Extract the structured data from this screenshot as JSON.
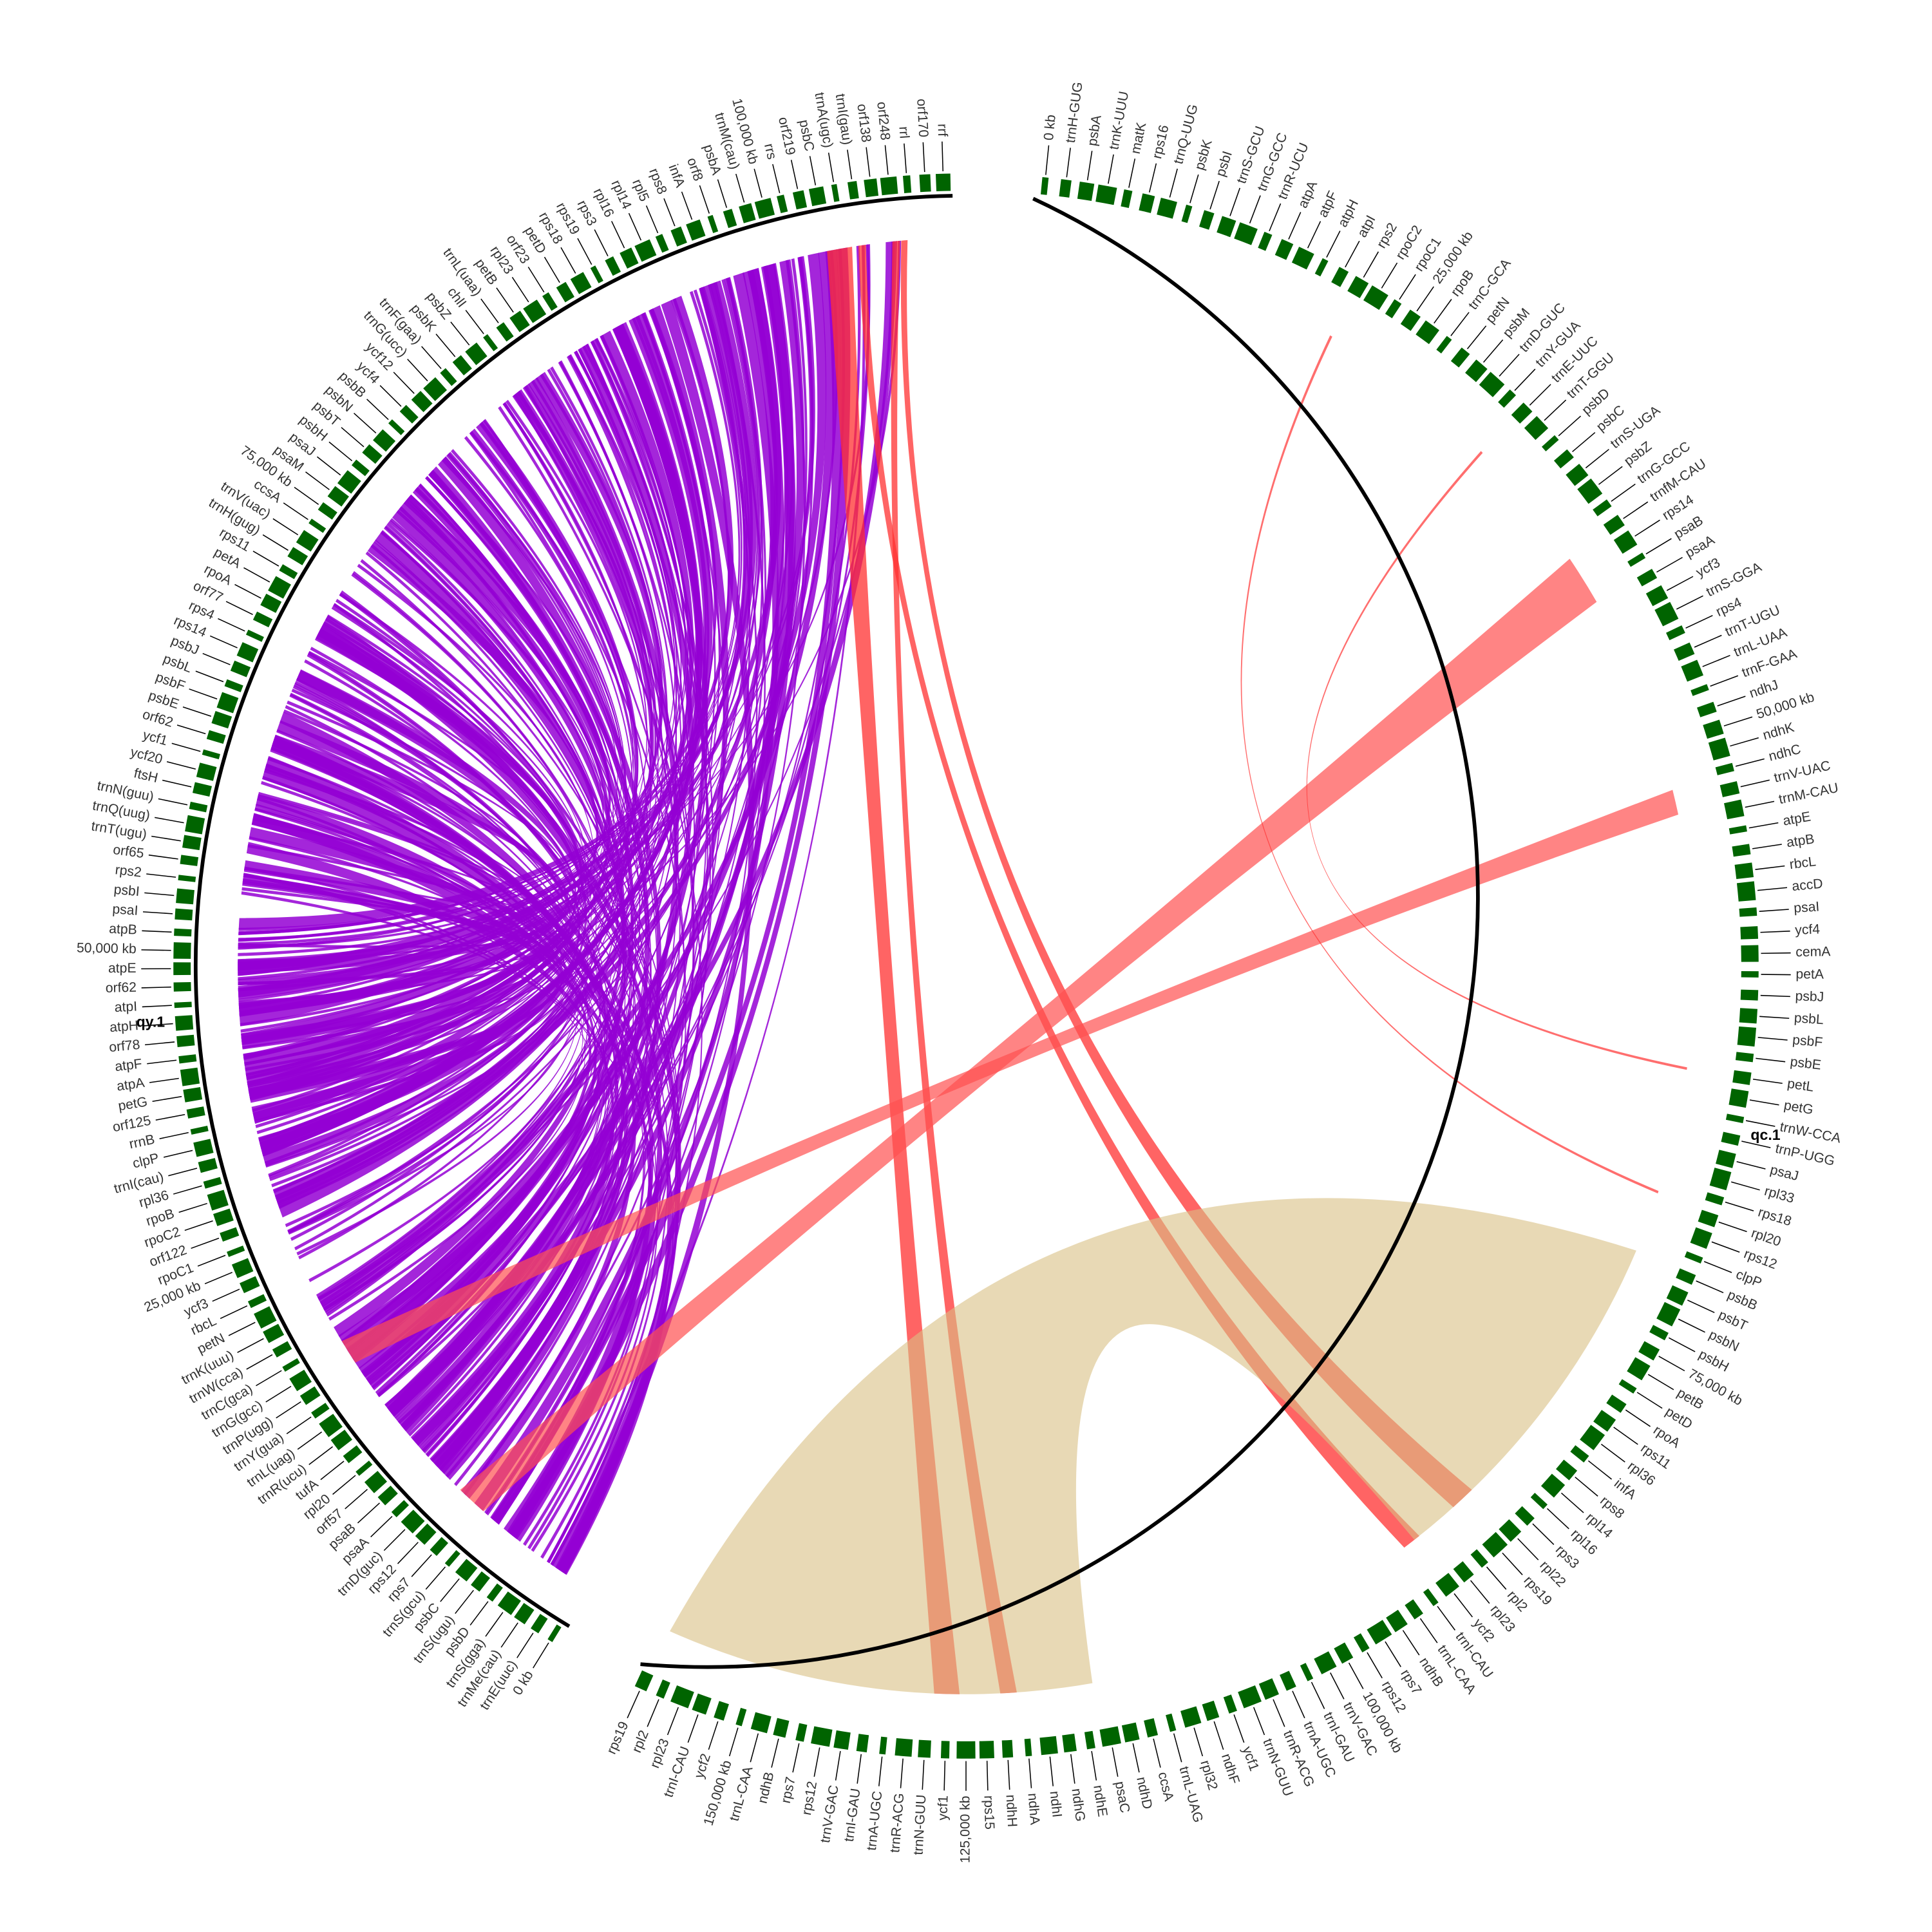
{
  "segments": [
    {
      "name": "qy.1",
      "labels": [
        "0 kb",
        "trnE(uuc)",
        "trnMe(cau)",
        "trnS(gga)",
        "psbD",
        "trnS(ugu)",
        "psbC",
        "trnS(gcu)",
        "rps7",
        "rps12",
        "trnD(guc)",
        "psaA",
        "psaB",
        "orf57",
        "rpl20",
        "tufA",
        "trnR(ucu)",
        "trnL(uag)",
        "trnY(gua)",
        "trnP(ugg)",
        "trnG(gcc)",
        "trnC(gca)",
        "trnW(cca)",
        "trnK(uuu)",
        "petN",
        "rbcL",
        "ycf3",
        "25,000 kb",
        "rpoC1",
        "orf122",
        "rpoC2",
        "rpoB",
        "rpl36",
        "trnI(cau)",
        "clpP",
        "rrnB",
        "orf125",
        "petG",
        "atpA",
        "atpF",
        "orf78",
        "atpH",
        "atpI",
        "orf62",
        "atpE",
        "50,000 kb",
        "atpB",
        "psaI",
        "psbI",
        "rps2",
        "orf65",
        "trnT(ugu)",
        "trnQ(uug)",
        "trnN(guu)",
        "ftsH",
        "ycf20",
        "ycf1",
        "orf62",
        "psbE",
        "psbF",
        "psbL",
        "psbJ",
        "rps14",
        "rps4",
        "orf77",
        "rpoA",
        "petA",
        "rps11",
        "trnH(gug)",
        "trnV(uac)",
        "ccsA",
        "75,000 kb",
        "psaM",
        "psaJ",
        "psbH",
        "psbT",
        "psbN",
        "psbB",
        "ycf4",
        "ycf12",
        "trnG(ucc)",
        "trnF(gaa)",
        "psbK",
        "psbZ",
        "chlI",
        "trnL(uaa)",
        "petB",
        "rpl23",
        "orf23",
        "petD",
        "rps18",
        "rps19",
        "rps3",
        "rpl16",
        "rpl14",
        "rpl5",
        "rps8",
        "infA",
        "orf8",
        "psbA",
        "trnM(cau)",
        "100,000 kb",
        "rrs",
        "orf219",
        "psbC",
        "trnA(ugc)",
        "trnI(gau)",
        "orf138",
        "orf248",
        "rrl",
        "orf170",
        "rrf"
      ]
    },
    {
      "name": "qc.1",
      "labels": [
        "0 kb",
        "trnH-GUG",
        "psbA",
        "trnK-UUU",
        "matK",
        "rps16",
        "trnQ-UUG",
        "psbK",
        "psbI",
        "trnS-GCU",
        "trnG-GCC",
        "trnR-UCU",
        "atpA",
        "atpF",
        "atpH",
        "atpI",
        "rps2",
        "rpoC2",
        "rpoC1",
        "25,000 kb",
        "rpoB",
        "trnC-GCA",
        "petN",
        "psbM",
        "trnD-GUC",
        "trnY-GUA",
        "trnE-UUC",
        "trnT-GGU",
        "psbD",
        "psbC",
        "trnS-UGA",
        "psbZ",
        "trnG-GCC",
        "trnfM-CAU",
        "rps14",
        "psaB",
        "psaA",
        "ycf3",
        "trnS-GGA",
        "rps4",
        "trnT-UGU",
        "trnL-UAA",
        "trnF-GAA",
        "ndhJ",
        "50,000 kb",
        "ndhK",
        "ndhC",
        "trnV-UAC",
        "trnM-CAU",
        "atpE",
        "atpB",
        "rbcL",
        "accD",
        "psaI",
        "ycf4",
        "cemA",
        "petA",
        "psbJ",
        "psbL",
        "psbF",
        "psbE",
        "petL",
        "petG",
        "trnW-CCA",
        "trnP-UGG",
        "psaJ",
        "rpl33",
        "rps18",
        "rpl20",
        "rps12",
        "clpP",
        "psbB",
        "psbT",
        "psbN",
        "psbH",
        "75,000 kb",
        "petB",
        "petD",
        "rpoA",
        "rps11",
        "rpl36",
        "infA",
        "rps8",
        "rpl14",
        "rpl16",
        "rps3",
        "rpl22",
        "rps19",
        "rpl2",
        "rpl23",
        "ycf2",
        "trnI-CAU",
        "trnL-CAA",
        "ndhB",
        "rps7",
        "rps12",
        "100,000 kb",
        "trnV-GAC",
        "trnI-GAU",
        "trnA-UGC",
        "trnR-ACG",
        "trnN-GUU",
        "ycf1",
        "ndhF",
        "rpl32",
        "trnL-UAG",
        "ccsA",
        "ndhD",
        "psaC",
        "ndhE",
        "ndhG",
        "ndhI",
        "ndhA",
        "ndhH",
        "rps15",
        "125,000 kb",
        "ycf1",
        "trnN-GUU",
        "trnR-ACG",
        "trnA-UGC",
        "trnI-GAU",
        "trnV-GAC",
        "rps12",
        "rps7",
        "ndhB",
        "trnL-CAA",
        "150,000 kb",
        "ycf2",
        "trnI-CAU",
        "rpl23",
        "rpl2",
        "rps19"
      ]
    }
  ]
}
